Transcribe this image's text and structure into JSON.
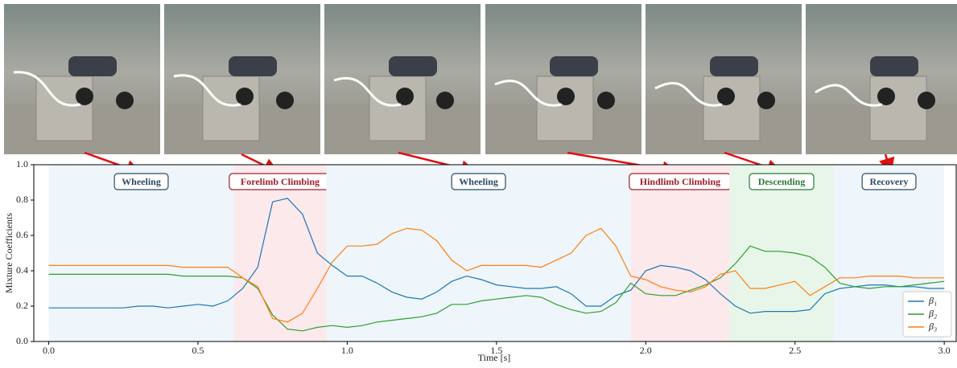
{
  "chart_data": {
    "type": "line",
    "xlabel": "Time [s]",
    "ylabel": "Mixture Coefficients",
    "xlim": [
      -0.05,
      3.04
    ],
    "ylim": [
      0,
      1
    ],
    "xticks": [
      {
        "value": 0,
        "label": "0.0"
      },
      0.5,
      {
        "value": 1,
        "label": "1.0"
      },
      1.5,
      {
        "value": 2,
        "label": "2.0"
      },
      2.5,
      {
        "value": 3,
        "label": "3.0"
      }
    ],
    "yticks": [
      {
        "value": 0,
        "label": "0.0"
      },
      0.2,
      0.4,
      0.6,
      0.8,
      {
        "value": 1,
        "label": "1.0"
      }
    ],
    "legend": "lower right",
    "phases": [
      {
        "label": "Wheeling",
        "start": 0,
        "end": 0.62,
        "color": "#2c4a66",
        "fill": "#eef6fb"
      },
      {
        "label": "Forelimb Climbing",
        "start": 0.62,
        "end": 0.93,
        "color": "#a0202e",
        "fill": "#fbe9ec"
      },
      {
        "label": "Wheeling",
        "start": 0.93,
        "end": 1.95,
        "color": "#2c4a66",
        "fill": "#eef6fb"
      },
      {
        "label": "Hindlimb Climbing",
        "start": 1.95,
        "end": 2.28,
        "color": "#a0202e",
        "fill": "#fbe9ec"
      },
      {
        "label": "Descending",
        "start": 2.28,
        "end": 2.63,
        "color": "#2a7a3a",
        "fill": "#e8f6ea"
      },
      {
        "label": "Recovery",
        "start": 2.63,
        "end": 3.0,
        "color": "#2c4a66",
        "fill": "#eef6fb"
      }
    ],
    "x": [
      0,
      0.05,
      0.1,
      0.15,
      0.2,
      0.25,
      0.3,
      0.35,
      0.4,
      0.45,
      0.5,
      0.55,
      0.6,
      0.65,
      0.7,
      0.75,
      0.8,
      0.85,
      0.9,
      0.95,
      1.0,
      1.05,
      1.1,
      1.15,
      1.2,
      1.25,
      1.3,
      1.35,
      1.4,
      1.45,
      1.5,
      1.55,
      1.6,
      1.65,
      1.7,
      1.75,
      1.8,
      1.85,
      1.9,
      1.95,
      2.0,
      2.05,
      2.1,
      2.15,
      2.2,
      2.25,
      2.3,
      2.35,
      2.4,
      2.45,
      2.5,
      2.55,
      2.6,
      2.65,
      2.7,
      2.75,
      2.8,
      2.85,
      2.9,
      2.95,
      3.0
    ],
    "series": [
      {
        "name": "β₁",
        "color": "#1f77b4",
        "values": [
          0.19,
          0.19,
          0.19,
          0.19,
          0.19,
          0.19,
          0.2,
          0.2,
          0.19,
          0.2,
          0.21,
          0.2,
          0.23,
          0.3,
          0.42,
          0.79,
          0.81,
          0.72,
          0.5,
          0.43,
          0.37,
          0.37,
          0.33,
          0.28,
          0.25,
          0.24,
          0.28,
          0.34,
          0.37,
          0.35,
          0.32,
          0.31,
          0.3,
          0.3,
          0.31,
          0.27,
          0.2,
          0.2,
          0.26,
          0.29,
          0.4,
          0.43,
          0.42,
          0.4,
          0.35,
          0.27,
          0.2,
          0.16,
          0.17,
          0.17,
          0.17,
          0.18,
          0.27,
          0.3,
          0.31,
          0.32,
          0.32,
          0.31,
          0.31,
          0.3,
          0.3
        ]
      },
      {
        "name": "β₂",
        "color": "#2ca02c",
        "values": [
          0.38,
          0.38,
          0.38,
          0.38,
          0.38,
          0.38,
          0.38,
          0.38,
          0.38,
          0.37,
          0.37,
          0.37,
          0.37,
          0.36,
          0.3,
          0.15,
          0.07,
          0.06,
          0.08,
          0.09,
          0.08,
          0.09,
          0.11,
          0.12,
          0.13,
          0.14,
          0.16,
          0.21,
          0.21,
          0.23,
          0.24,
          0.25,
          0.26,
          0.25,
          0.21,
          0.18,
          0.16,
          0.17,
          0.22,
          0.33,
          0.27,
          0.26,
          0.26,
          0.29,
          0.32,
          0.36,
          0.44,
          0.54,
          0.51,
          0.51,
          0.5,
          0.48,
          0.42,
          0.33,
          0.31,
          0.3,
          0.31,
          0.31,
          0.32,
          0.33,
          0.34
        ]
      },
      {
        "name": "β₃",
        "color": "#ff7f0e",
        "values": [
          0.43,
          0.43,
          0.43,
          0.43,
          0.43,
          0.43,
          0.43,
          0.43,
          0.43,
          0.42,
          0.42,
          0.42,
          0.42,
          0.36,
          0.31,
          0.13,
          0.11,
          0.16,
          0.3,
          0.45,
          0.54,
          0.54,
          0.55,
          0.61,
          0.64,
          0.63,
          0.57,
          0.46,
          0.4,
          0.43,
          0.43,
          0.43,
          0.43,
          0.42,
          0.46,
          0.5,
          0.6,
          0.64,
          0.54,
          0.37,
          0.35,
          0.31,
          0.29,
          0.28,
          0.31,
          0.38,
          0.4,
          0.3,
          0.3,
          0.32,
          0.34,
          0.26,
          0.31,
          0.36,
          0.36,
          0.37,
          0.37,
          0.37,
          0.36,
          0.36,
          0.36
        ]
      }
    ]
  }
}
